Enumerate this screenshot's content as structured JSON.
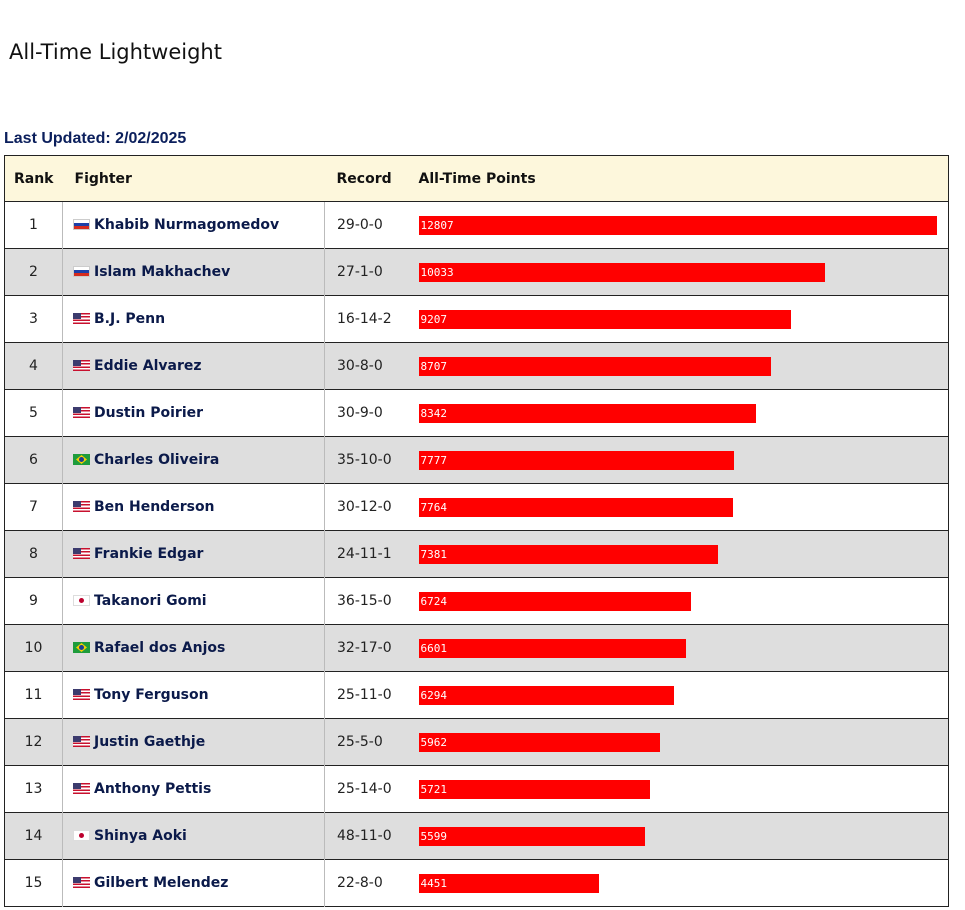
{
  "page_title": "All-Time Lightweight",
  "last_updated": "Last Updated: 2/02/2025",
  "columns": {
    "rank": "Rank",
    "fighter": "Fighter",
    "record": "Record",
    "points": "All-Time Points"
  },
  "bar_color": "#ff0000",
  "max_points": 12807,
  "rows": [
    {
      "rank": "1",
      "flag": "ru",
      "flag_icon": "russia-flag-icon",
      "name": "Khabib Nurmagomedov",
      "record": "29-0-0",
      "points": 12807
    },
    {
      "rank": "2",
      "flag": "ru",
      "flag_icon": "russia-flag-icon",
      "name": "Islam Makhachev",
      "record": "27-1-0",
      "points": 10033
    },
    {
      "rank": "3",
      "flag": "us",
      "flag_icon": "usa-flag-icon",
      "name": "B.J. Penn",
      "record": "16-14-2",
      "points": 9207
    },
    {
      "rank": "4",
      "flag": "us",
      "flag_icon": "usa-flag-icon",
      "name": "Eddie Alvarez",
      "record": "30-8-0",
      "points": 8707
    },
    {
      "rank": "5",
      "flag": "us",
      "flag_icon": "usa-flag-icon",
      "name": "Dustin Poirier",
      "record": "30-9-0",
      "points": 8342
    },
    {
      "rank": "6",
      "flag": "br",
      "flag_icon": "brazil-flag-icon",
      "name": "Charles Oliveira",
      "record": "35-10-0",
      "points": 7777
    },
    {
      "rank": "7",
      "flag": "us",
      "flag_icon": "usa-flag-icon",
      "name": "Ben Henderson",
      "record": "30-12-0",
      "points": 7764
    },
    {
      "rank": "8",
      "flag": "us",
      "flag_icon": "usa-flag-icon",
      "name": "Frankie Edgar",
      "record": "24-11-1",
      "points": 7381
    },
    {
      "rank": "9",
      "flag": "jp",
      "flag_icon": "japan-flag-icon",
      "name": "Takanori Gomi",
      "record": "36-15-0",
      "points": 6724
    },
    {
      "rank": "10",
      "flag": "br",
      "flag_icon": "brazil-flag-icon",
      "name": "Rafael dos Anjos",
      "record": "32-17-0",
      "points": 6601
    },
    {
      "rank": "11",
      "flag": "us",
      "flag_icon": "usa-flag-icon",
      "name": "Tony Ferguson",
      "record": "25-11-0",
      "points": 6294
    },
    {
      "rank": "12",
      "flag": "us",
      "flag_icon": "usa-flag-icon",
      "name": "Justin Gaethje",
      "record": "25-5-0",
      "points": 5962
    },
    {
      "rank": "13",
      "flag": "us",
      "flag_icon": "usa-flag-icon",
      "name": "Anthony Pettis",
      "record": "25-14-0",
      "points": 5721
    },
    {
      "rank": "14",
      "flag": "jp",
      "flag_icon": "japan-flag-icon",
      "name": "Shinya Aoki",
      "record": "48-11-0",
      "points": 5599
    },
    {
      "rank": "15",
      "flag": "us",
      "flag_icon": "usa-flag-icon",
      "name": "Gilbert Melendez",
      "record": "22-8-0",
      "points": 4451
    }
  ]
}
